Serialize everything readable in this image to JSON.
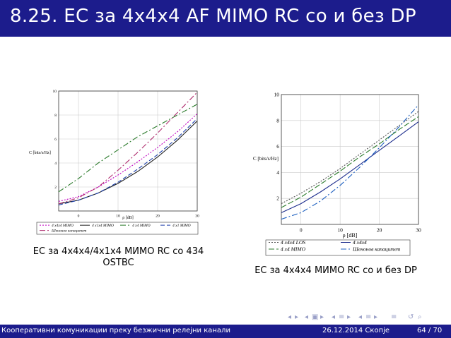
{
  "slide": {
    "title": "8.25. ЕС за 4x4x4 AF MIMO RC со и без DP",
    "caption_left": "ЕС за 4x4x4/4x1x4 МИМО RC со 434 OSTBC",
    "caption_right": "ЕС за 4x4x4 МИМО RC со и без DP"
  },
  "footer": {
    "left": "Кооперативни комуникации преку безжични релејни канали",
    "date": "26.12.2014 Скопје",
    "page": "64 / 70"
  },
  "nav": {
    "icons": [
      "nav-left-icon",
      "nav-right-icon",
      "frame-left-icon",
      "frame-right-icon",
      "subsection-left-icon",
      "subsection-right-icon",
      "section-left-icon",
      "section-right-icon",
      "align-icon",
      "undo-icon"
    ]
  },
  "colors": {
    "bar": "#1c1c8c",
    "white": "#ffffff"
  },
  "chart_data": [
    {
      "type": "line",
      "xlabel": "ρ [dB]",
      "ylabel": "C [bits/s/Hz]",
      "xlim": [
        -5,
        30
      ],
      "ylim": [
        0,
        10
      ],
      "xticks": [
        0,
        10,
        20,
        30
      ],
      "yticks": [
        2,
        4,
        6,
        8,
        10
      ],
      "grid": true,
      "legend": "bottom",
      "series": [
        {
          "name": "4 x4x4 MIMO",
          "color": "#c000c0",
          "dash": "2,2",
          "x": [
            -5,
            0,
            5,
            10,
            15,
            20,
            25,
            30
          ],
          "y": [
            0.8,
            1.2,
            2.0,
            3.0,
            4.1,
            5.3,
            6.6,
            8.1
          ]
        },
        {
          "name": "4 x1x4 MIMO",
          "color": "#202020",
          "dash": "",
          "x": [
            -5,
            0,
            5,
            10,
            15,
            20,
            25,
            30
          ],
          "y": [
            0.6,
            0.9,
            1.5,
            2.3,
            3.3,
            4.5,
            5.9,
            7.5
          ]
        },
        {
          "name": "4 x4 MIMO",
          "color": "#2a7a2a",
          "dash": "8,3,2,3",
          "x": [
            -5,
            0,
            5,
            10,
            15,
            20,
            25,
            30
          ],
          "y": [
            1.6,
            2.7,
            4.0,
            5.1,
            6.2,
            7.1,
            8.0,
            8.9
          ]
        },
        {
          "name": "4 x1 MIMO",
          "color": "#1c3faa",
          "dash": "6,3",
          "x": [
            -5,
            0,
            5,
            10,
            15,
            20,
            25,
            30
          ],
          "y": [
            0.5,
            0.9,
            1.5,
            2.4,
            3.5,
            4.7,
            6.1,
            7.7
          ]
        },
        {
          "name": "Шенонов капацитет",
          "color": "#b03070",
          "dash": "8,3,2,3",
          "x": [
            -5,
            0,
            5,
            10,
            15,
            20,
            25,
            30
          ],
          "y": [
            0.6,
            1.1,
            2.0,
            3.4,
            4.9,
            6.5,
            8.2,
            9.9
          ]
        }
      ]
    },
    {
      "type": "line",
      "xlabel": "ρ [dB]",
      "ylabel": "C [bits/s/Hz]",
      "xlim": [
        -5,
        30
      ],
      "ylim": [
        0,
        10
      ],
      "xticks": [
        0,
        10,
        20,
        30
      ],
      "yticks": [
        2,
        4,
        6,
        8,
        10
      ],
      "grid": true,
      "legend": "bottom",
      "series": [
        {
          "name": "4 x4x4 LOS",
          "color": "#555555",
          "dash": "2,2",
          "x": [
            -5,
            0,
            5,
            10,
            15,
            20,
            25,
            30
          ],
          "y": [
            1.6,
            2.4,
            3.3,
            4.3,
            5.4,
            6.5,
            7.6,
            8.7
          ]
        },
        {
          "name": "4 x4x4",
          "color": "#1c2c8c",
          "dash": "",
          "x": [
            -5,
            0,
            5,
            10,
            15,
            20,
            25,
            30
          ],
          "y": [
            0.9,
            1.6,
            2.5,
            3.5,
            4.6,
            5.7,
            6.8,
            7.9
          ]
        },
        {
          "name": "4 x4 MIMO",
          "color": "#2a7a2a",
          "dash": "8,3",
          "x": [
            -5,
            0,
            5,
            10,
            15,
            20,
            25,
            30
          ],
          "y": [
            1.3,
            2.1,
            3.1,
            4.1,
            5.2,
            6.2,
            7.3,
            8.3
          ]
        },
        {
          "name": "Шенонов капацитет",
          "color": "#1c5fc0",
          "dash": "8,3,2,3",
          "x": [
            -5,
            0,
            5,
            10,
            15,
            20,
            25,
            30
          ],
          "y": [
            0.4,
            0.9,
            1.8,
            3.0,
            4.4,
            5.9,
            7.5,
            9.2
          ]
        }
      ]
    }
  ]
}
